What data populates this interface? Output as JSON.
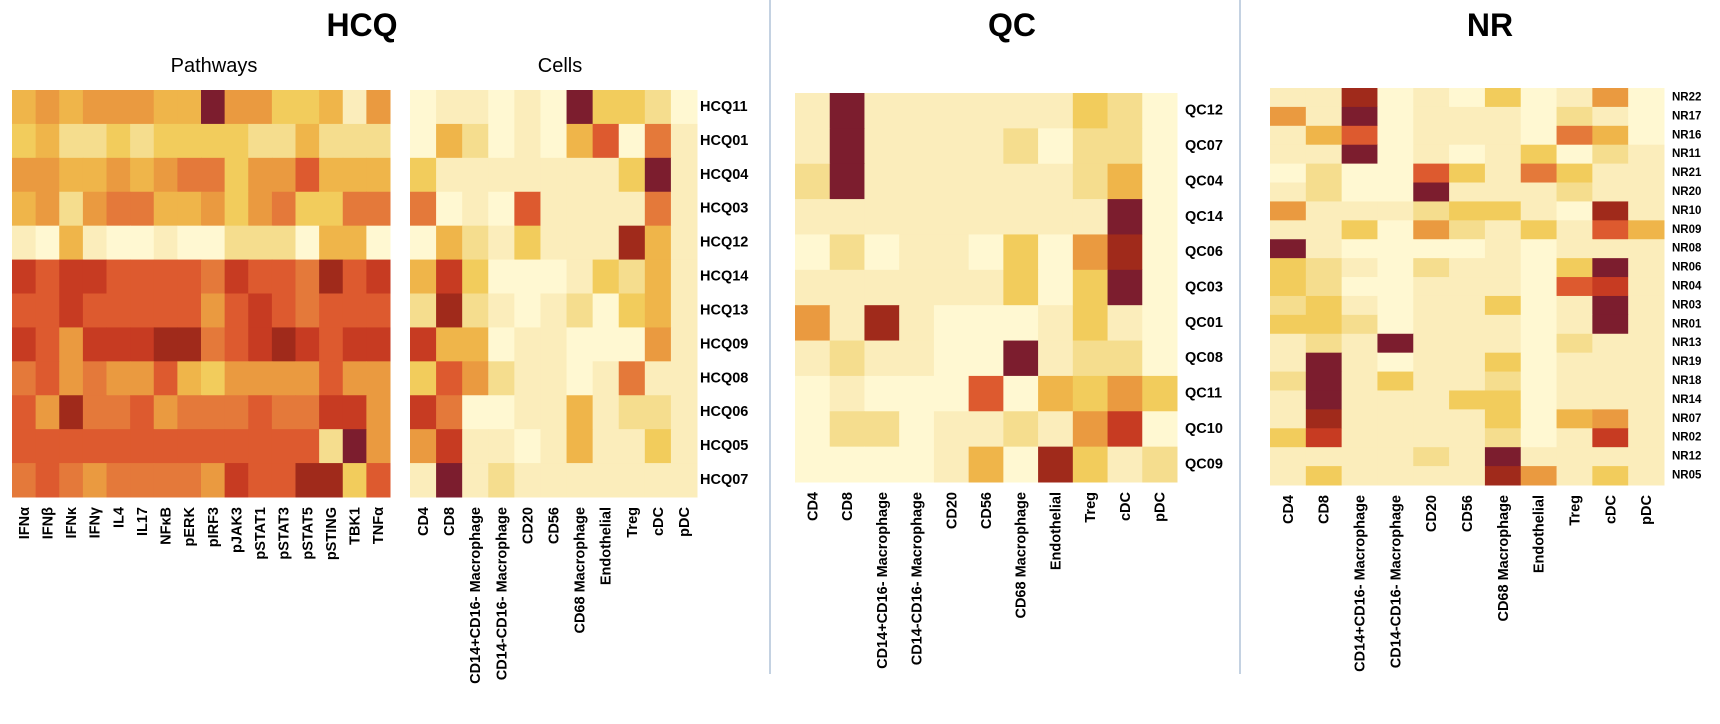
{
  "colors": {
    "palette": [
      "#FFF8D2",
      "#FBEDBB",
      "#F5DD8E",
      "#F2CC5C",
      "#EFB54A",
      "#EA9A40",
      "#E4793A",
      "#DD5A2F",
      "#C73B22",
      "#A02A1B",
      "#7C1D2E"
    ]
  },
  "chart_data": [
    {
      "type": "heatmap",
      "group": "HCQ",
      "subtitle": "Pathways",
      "columns": [
        "IFNα",
        "IFNβ",
        "IFNκ",
        "IFNγ",
        "IL4",
        "IL17",
        "NFκB",
        "pERK",
        "pIRF3",
        "pJAK3",
        "pSTAT1",
        "pSTAT3",
        "pSTAT5",
        "pSTING",
        "TBK1",
        "TNFα"
      ],
      "rows": [
        "HCQ11",
        "HCQ01",
        "HCQ04",
        "HCQ03",
        "HCQ12",
        "HCQ14",
        "HCQ13",
        "HCQ09",
        "HCQ08",
        "HCQ06",
        "HCQ05",
        "HCQ07"
      ],
      "values": [
        [
          4,
          5,
          4,
          5,
          5,
          5,
          4,
          4,
          10,
          5,
          5,
          3,
          3,
          4,
          1,
          5
        ],
        [
          3,
          4,
          2,
          2,
          3,
          2,
          3,
          3,
          3,
          3,
          2,
          2,
          4,
          2,
          2,
          2
        ],
        [
          5,
          5,
          4,
          4,
          5,
          4,
          5,
          6,
          6,
          3,
          5,
          5,
          7,
          4,
          4,
          4
        ],
        [
          4,
          5,
          2,
          5,
          6,
          6,
          4,
          4,
          5,
          3,
          5,
          6,
          3,
          3,
          6,
          6
        ],
        [
          1,
          0,
          4,
          1,
          0,
          0,
          1,
          0,
          0,
          2,
          2,
          2,
          0,
          4,
          4,
          0
        ],
        [
          8,
          7,
          8,
          8,
          7,
          7,
          7,
          7,
          6,
          8,
          7,
          7,
          6,
          9,
          7,
          8
        ],
        [
          7,
          7,
          8,
          7,
          7,
          7,
          7,
          7,
          5,
          7,
          8,
          7,
          6,
          7,
          7,
          7
        ],
        [
          8,
          7,
          5,
          8,
          8,
          8,
          9,
          9,
          6,
          7,
          8,
          9,
          8,
          7,
          8,
          8
        ],
        [
          6,
          7,
          5,
          6,
          5,
          5,
          7,
          4,
          3,
          5,
          5,
          5,
          5,
          7,
          5,
          5
        ],
        [
          7,
          5,
          9,
          6,
          6,
          7,
          5,
          6,
          6,
          6,
          7,
          6,
          6,
          8,
          8,
          5
        ],
        [
          7,
          7,
          7,
          7,
          7,
          7,
          7,
          7,
          7,
          7,
          7,
          7,
          7,
          2,
          10,
          5
        ],
        [
          6,
          7,
          6,
          5,
          6,
          6,
          6,
          6,
          5,
          8,
          7,
          7,
          9,
          9,
          3,
          7
        ]
      ]
    },
    {
      "type": "heatmap",
      "group": "HCQ",
      "subtitle": "Cells",
      "columns": [
        "CD4",
        "CD8",
        "CD14+CD16- Macrophage",
        "CD14-CD16- Macrophage",
        "CD20",
        "CD56",
        "CD68 Macrophage",
        "Endothelial",
        "Treg",
        "cDC",
        "pDC"
      ],
      "rows": [
        "HCQ11",
        "HCQ01",
        "HCQ04",
        "HCQ03",
        "HCQ12",
        "HCQ14",
        "HCQ13",
        "HCQ09",
        "HCQ08",
        "HCQ06",
        "HCQ05",
        "HCQ07"
      ],
      "values": [
        [
          0,
          1,
          1,
          0,
          1,
          0,
          10,
          3,
          3,
          2,
          0
        ],
        [
          0,
          4,
          2,
          0,
          1,
          0,
          4,
          7,
          0,
          6,
          1
        ],
        [
          3,
          1,
          1,
          1,
          1,
          1,
          1,
          1,
          3,
          10,
          1
        ],
        [
          6,
          0,
          1,
          0,
          7,
          1,
          1,
          1,
          1,
          6,
          1
        ],
        [
          0,
          4,
          2,
          1,
          3,
          1,
          1,
          1,
          9,
          4,
          1
        ],
        [
          4,
          8,
          3,
          0,
          0,
          0,
          1,
          3,
          2,
          4,
          1
        ],
        [
          2,
          9,
          2,
          1,
          0,
          1,
          2,
          0,
          3,
          4,
          1
        ],
        [
          8,
          4,
          4,
          0,
          1,
          1,
          0,
          0,
          0,
          5,
          1
        ],
        [
          3,
          7,
          5,
          2,
          1,
          1,
          0,
          1,
          6,
          1,
          1
        ],
        [
          8,
          6,
          0,
          0,
          1,
          1,
          4,
          1,
          2,
          2,
          1
        ],
        [
          5,
          8,
          1,
          1,
          0,
          1,
          4,
          1,
          1,
          3,
          1
        ],
        [
          1,
          10,
          1,
          2,
          1,
          1,
          1,
          1,
          1,
          1,
          1
        ]
      ]
    },
    {
      "type": "heatmap",
      "group": "QC",
      "columns": [
        "CD4",
        "CD8",
        "CD14+CD16- Macrophage",
        "CD14-CD16- Macrophage",
        "CD20",
        "CD56",
        "CD68 Macrophage",
        "Endothelial",
        "Treg",
        "cDC",
        "pDC"
      ],
      "rows": [
        "QC12",
        "QC07",
        "QC04",
        "QC14",
        "QC06",
        "QC03",
        "QC01",
        "QC08",
        "QC11",
        "QC10",
        "QC09"
      ],
      "values": [
        [
          1,
          10,
          1,
          1,
          1,
          1,
          1,
          1,
          3,
          2,
          0
        ],
        [
          1,
          10,
          1,
          1,
          1,
          1,
          2,
          0,
          2,
          2,
          0
        ],
        [
          2,
          10,
          1,
          1,
          1,
          1,
          1,
          1,
          2,
          4,
          0
        ],
        [
          1,
          1,
          1,
          1,
          1,
          1,
          1,
          1,
          1,
          10,
          0
        ],
        [
          0,
          2,
          0,
          1,
          1,
          0,
          3,
          0,
          5,
          9,
          0
        ],
        [
          1,
          1,
          1,
          1,
          1,
          1,
          3,
          0,
          3,
          10,
          0
        ],
        [
          5,
          1,
          9,
          1,
          0,
          0,
          0,
          1,
          3,
          1,
          0
        ],
        [
          1,
          2,
          1,
          1,
          0,
          0,
          10,
          1,
          2,
          2,
          0
        ],
        [
          0,
          1,
          0,
          0,
          0,
          7,
          0,
          4,
          3,
          5,
          3
        ],
        [
          0,
          2,
          2,
          0,
          1,
          1,
          2,
          1,
          5,
          8,
          0
        ],
        [
          0,
          0,
          0,
          0,
          1,
          4,
          0,
          9,
          3,
          1,
          2
        ]
      ]
    },
    {
      "type": "heatmap",
      "group": "NR",
      "columns": [
        "CD4",
        "CD8",
        "CD14+CD16- Macrophage",
        "CD14-CD16- Macrophage",
        "CD20",
        "CD56",
        "CD68 Macrophage",
        "Endothelial",
        "Treg",
        "cDC",
        "pDC"
      ],
      "rows": [
        "NR22",
        "NR17",
        "NR16",
        "NR11",
        "NR21",
        "NR20",
        "NR10",
        "NR09",
        "NR08",
        "NR06",
        "NR04",
        "NR03",
        "NR01",
        "NR13",
        "NR19",
        "NR18",
        "NR14",
        "NR07",
        "NR02",
        "NR12",
        "NR05"
      ],
      "values": [
        [
          1,
          1,
          9,
          0,
          1,
          0,
          3,
          0,
          1,
          5,
          0
        ],
        [
          5,
          1,
          10,
          0,
          1,
          1,
          1,
          0,
          2,
          1,
          0
        ],
        [
          1,
          4,
          7,
          0,
          1,
          1,
          1,
          0,
          6,
          4,
          0
        ],
        [
          1,
          1,
          10,
          0,
          1,
          0,
          1,
          3,
          0,
          2,
          1
        ],
        [
          0,
          2,
          0,
          0,
          7,
          3,
          1,
          6,
          3,
          1,
          1
        ],
        [
          1,
          2,
          0,
          0,
          10,
          1,
          1,
          1,
          2,
          1,
          1
        ],
        [
          5,
          1,
          1,
          1,
          2,
          3,
          3,
          1,
          0,
          9,
          1
        ],
        [
          1,
          1,
          3,
          0,
          5,
          2,
          1,
          3,
          1,
          7,
          4
        ],
        [
          10,
          1,
          0,
          0,
          0,
          0,
          1,
          0,
          1,
          1,
          1
        ],
        [
          3,
          2,
          1,
          0,
          2,
          1,
          1,
          0,
          3,
          10,
          1
        ],
        [
          3,
          2,
          0,
          0,
          1,
          1,
          1,
          0,
          7,
          8,
          1
        ],
        [
          2,
          3,
          1,
          0,
          1,
          1,
          3,
          0,
          1,
          10,
          1
        ],
        [
          3,
          3,
          2,
          0,
          1,
          1,
          1,
          0,
          1,
          10,
          1
        ],
        [
          1,
          2,
          1,
          10,
          1,
          1,
          1,
          0,
          2,
          1,
          1
        ],
        [
          1,
          10,
          1,
          0,
          1,
          1,
          3,
          0,
          1,
          1,
          1
        ],
        [
          2,
          10,
          1,
          3,
          1,
          1,
          2,
          0,
          1,
          1,
          1
        ],
        [
          1,
          10,
          1,
          1,
          1,
          3,
          3,
          0,
          1,
          1,
          1
        ],
        [
          1,
          9,
          1,
          1,
          1,
          1,
          3,
          0,
          4,
          5,
          1
        ],
        [
          3,
          8,
          1,
          1,
          1,
          1,
          2,
          0,
          1,
          8,
          1
        ],
        [
          1,
          1,
          1,
          1,
          2,
          1,
          10,
          1,
          1,
          1,
          1
        ],
        [
          1,
          3,
          1,
          1,
          1,
          1,
          9,
          5,
          1,
          3,
          1
        ]
      ]
    }
  ]
}
